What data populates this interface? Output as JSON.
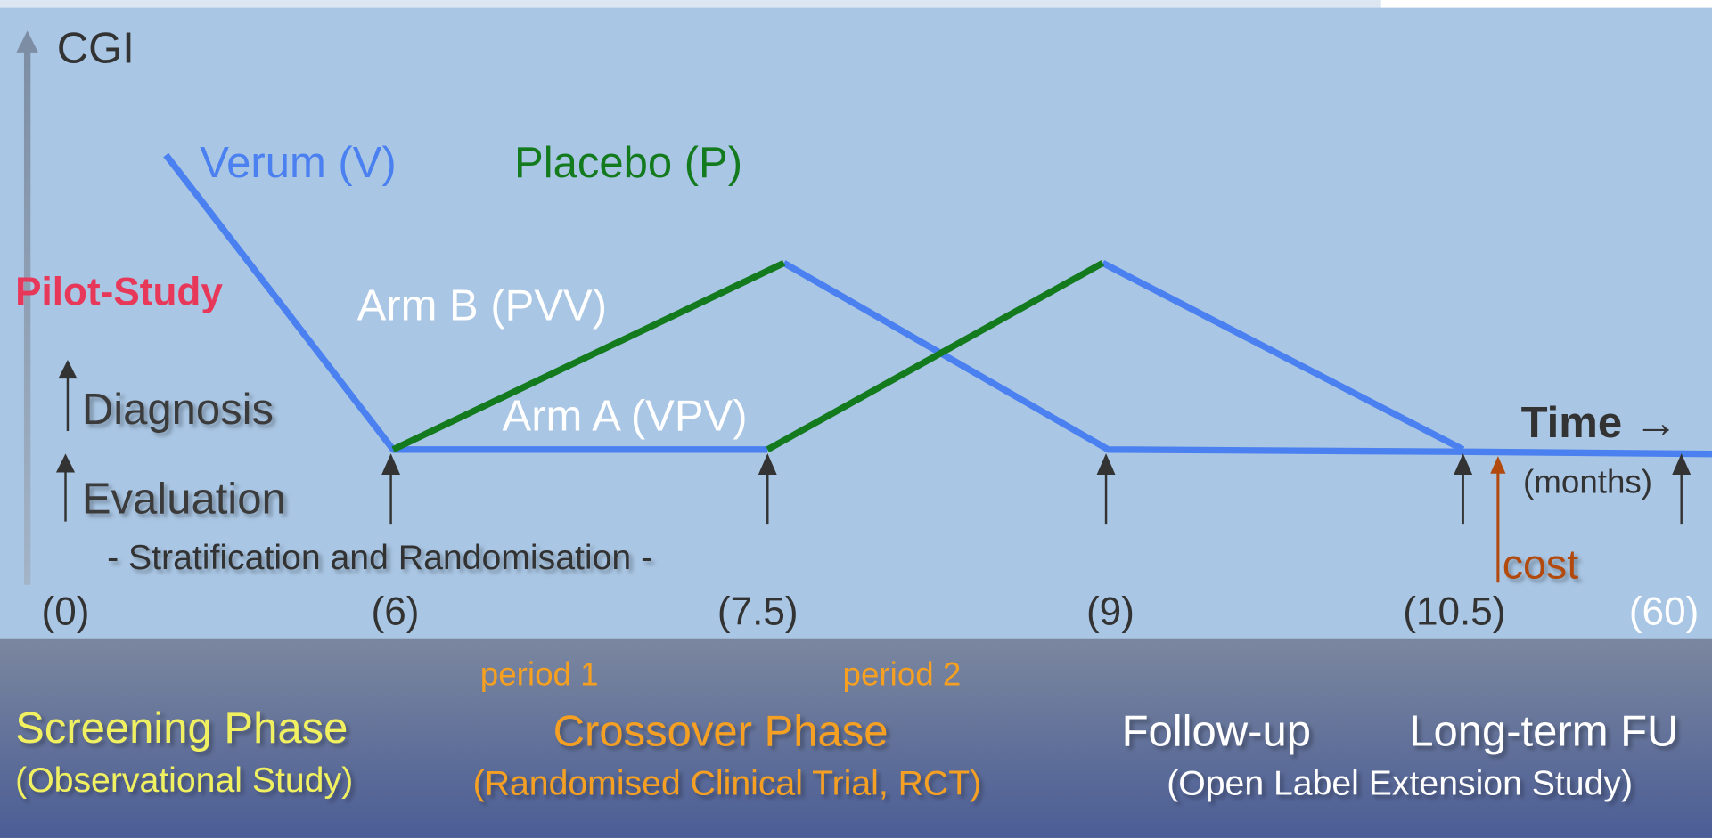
{
  "axis_label": "CGI",
  "legend": {
    "verum": "Verum (V)",
    "placebo": "Placebo (P)"
  },
  "pilot": "Pilot-Study",
  "arms": {
    "b": "Arm B (PVV)",
    "a": "Arm A (VPV)"
  },
  "steps": {
    "diagnosis": "Diagnosis",
    "evaluation": "Evaluation",
    "stratification": "- Stratification and Randomisation -"
  },
  "time": {
    "label": "Time →",
    "unit": "(months)",
    "cost": "cost"
  },
  "time_labels": [
    "(0)",
    "(6)",
    "(7.5)",
    "(9)",
    "(10.5)",
    "(60)"
  ],
  "periods": [
    "period 1",
    "period 2"
  ],
  "phases": [
    {
      "title": "Screening Phase",
      "subtitle": "(Observational Study)"
    },
    {
      "title": "Crossover Phase",
      "subtitle": "(Randomised Clinical Trial, RCT)"
    },
    {
      "title": "Follow-up"
    },
    {
      "title": "Long-term FU",
      "subtitle": "(Open Label Extension Study)"
    }
  ]
}
